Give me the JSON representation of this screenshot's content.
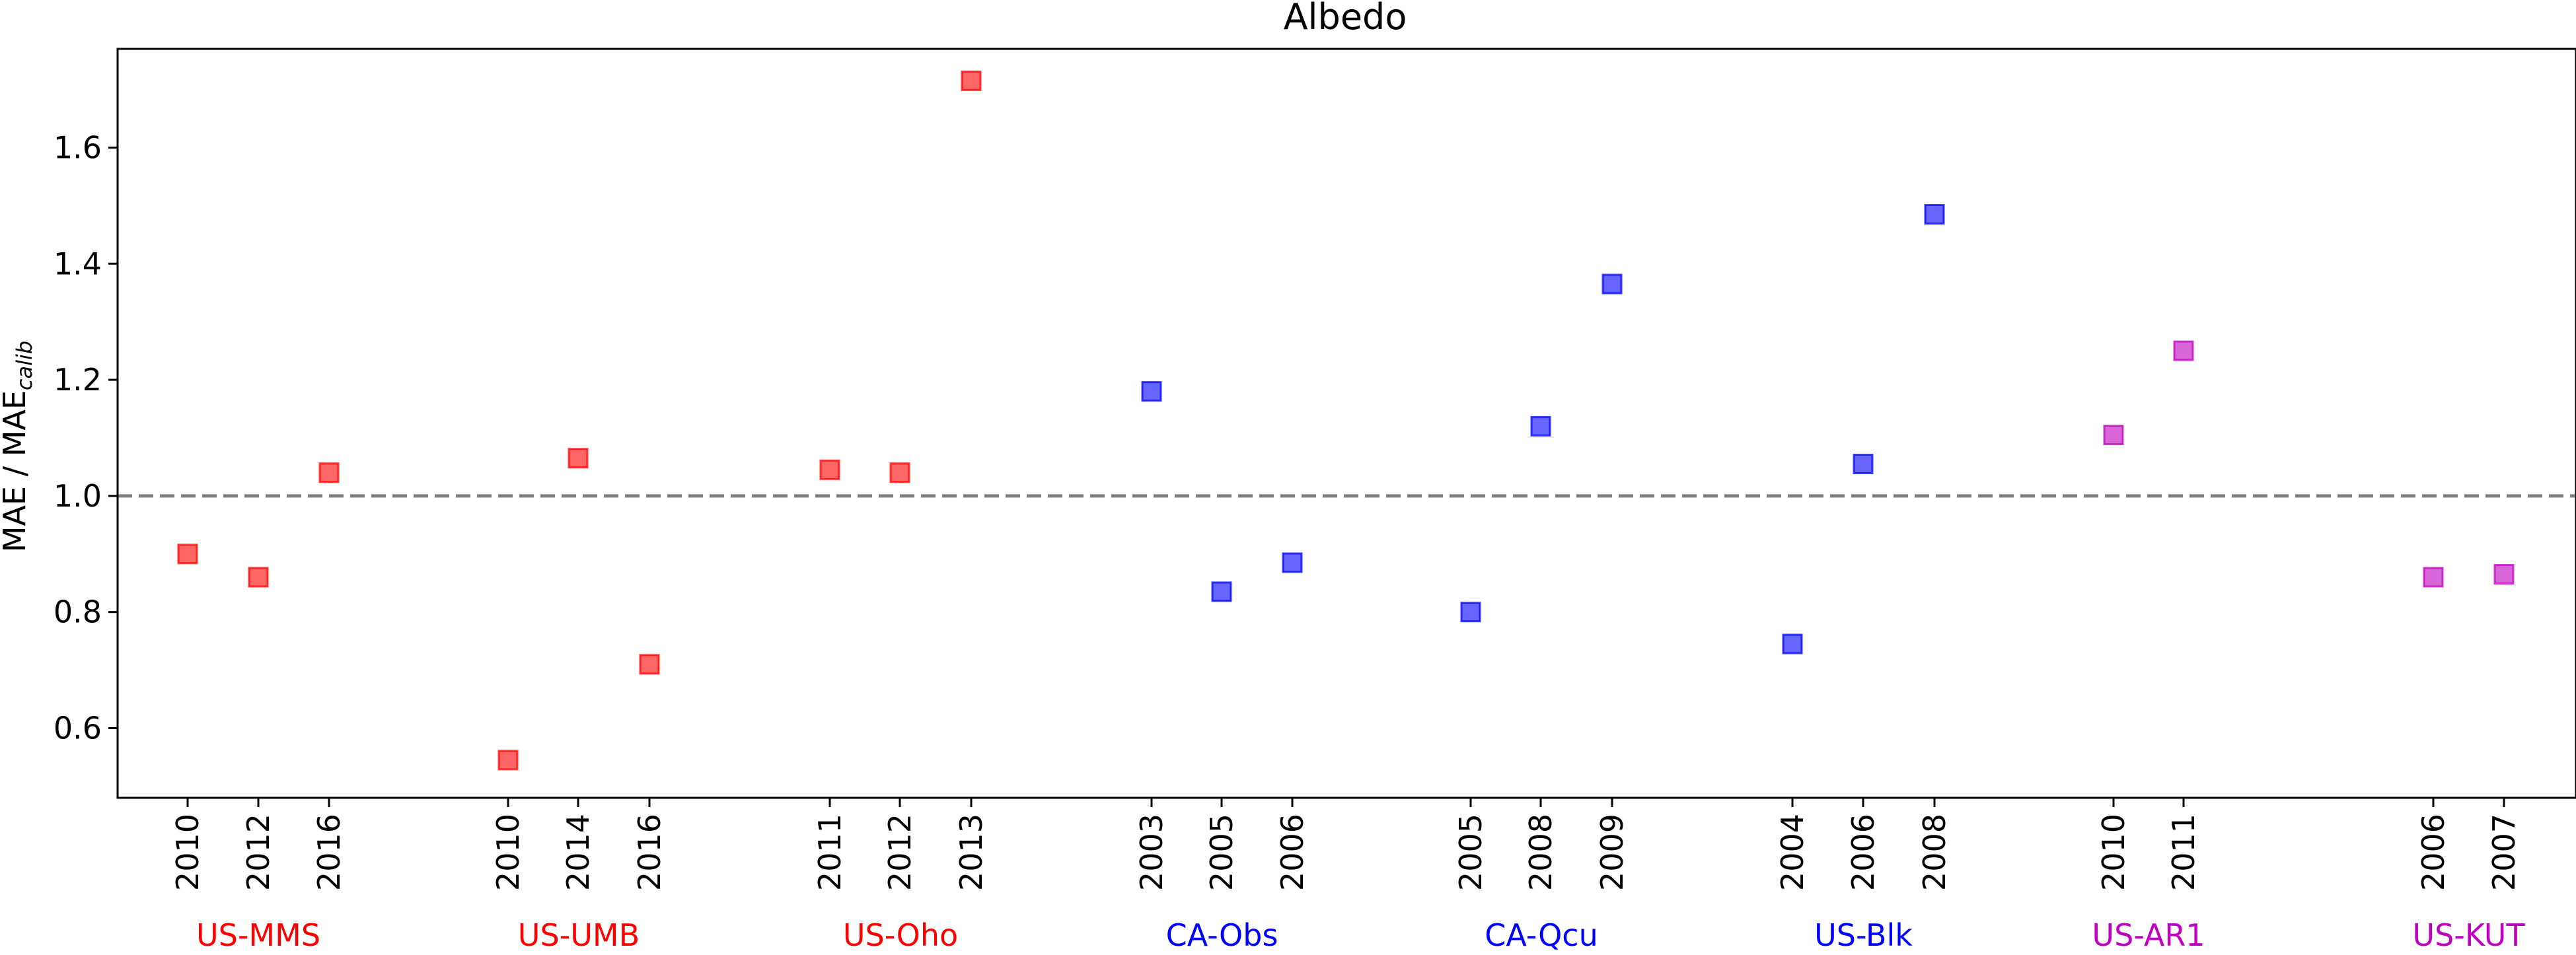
{
  "chart_data": {
    "type": "scatter",
    "title": "Albedo",
    "ylabel": "MAE / MAE",
    "ylabel_subscript": "calib",
    "xlabel": "",
    "ylim": [
      0.48,
      1.77
    ],
    "yticks": [
      0.6,
      0.8,
      1.0,
      1.2,
      1.4,
      1.6
    ],
    "reference_line": {
      "y": 1.0,
      "style": "dashed",
      "color": "#808080"
    },
    "grid": false,
    "marker": "square",
    "groups": [
      {
        "name": "US-MMS",
        "color": "#ff0000",
        "points": [
          {
            "year": "2010",
            "value": 0.9
          },
          {
            "year": "2012",
            "value": 0.86
          },
          {
            "year": "2016",
            "value": 1.04
          }
        ]
      },
      {
        "name": "US-UMB",
        "color": "#ff0000",
        "points": [
          {
            "year": "2010",
            "value": 0.545
          },
          {
            "year": "2014",
            "value": 1.065
          },
          {
            "year": "2016",
            "value": 0.71
          }
        ]
      },
      {
        "name": "US-Oho",
        "color": "#ff0000",
        "points": [
          {
            "year": "2011",
            "value": 1.045
          },
          {
            "year": "2012",
            "value": 1.04
          },
          {
            "year": "2013",
            "value": 1.715
          }
        ]
      },
      {
        "name": "CA-Obs",
        "color": "#0000ff",
        "points": [
          {
            "year": "2003",
            "value": 1.18
          },
          {
            "year": "2005",
            "value": 0.835
          },
          {
            "year": "2006",
            "value": 0.885
          }
        ]
      },
      {
        "name": "CA-Qcu",
        "color": "#0000ff",
        "points": [
          {
            "year": "2005",
            "value": 0.8
          },
          {
            "year": "2008",
            "value": 1.12
          },
          {
            "year": "2009",
            "value": 1.365
          }
        ]
      },
      {
        "name": "US-Blk",
        "color": "#0000ff",
        "points": [
          {
            "year": "2004",
            "value": 0.745
          },
          {
            "year": "2006",
            "value": 1.055
          },
          {
            "year": "2008",
            "value": 1.485
          }
        ]
      },
      {
        "name": "US-AR1",
        "color": "#c000c0",
        "points": [
          {
            "year": "2010",
            "value": 1.105
          },
          {
            "year": "2011",
            "value": 1.25
          }
        ]
      },
      {
        "name": "US-KUT",
        "color": "#c000c0",
        "points": [
          {
            "year": "2006",
            "value": 0.86
          },
          {
            "year": "2007",
            "value": 0.865
          }
        ]
      }
    ]
  }
}
